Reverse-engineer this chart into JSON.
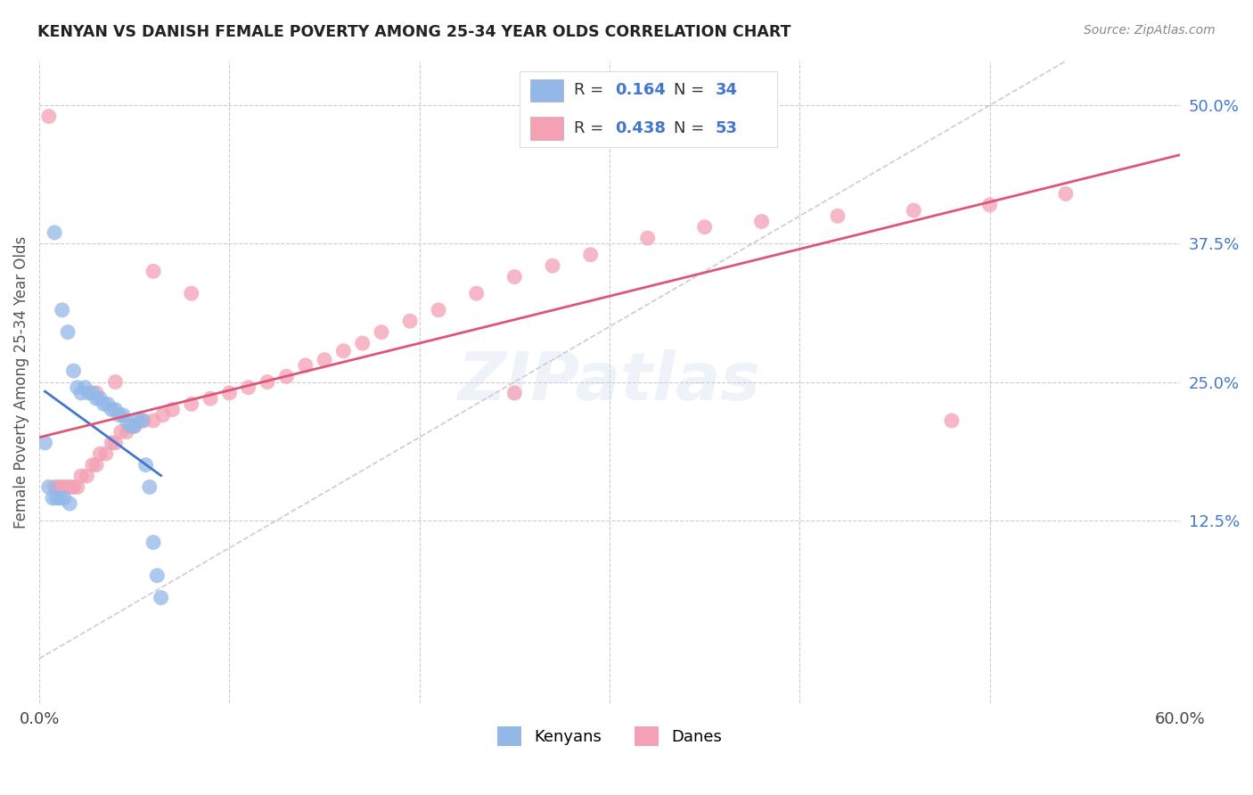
{
  "title": "KENYAN VS DANISH FEMALE POVERTY AMONG 25-34 YEAR OLDS CORRELATION CHART",
  "source": "Source: ZipAtlas.com",
  "ylabel": "Female Poverty Among 25-34 Year Olds",
  "xlim": [
    0.0,
    0.6
  ],
  "ylim": [
    -0.04,
    0.54
  ],
  "xticks": [
    0.0,
    0.1,
    0.2,
    0.3,
    0.4,
    0.5,
    0.6
  ],
  "xticklabels": [
    "0.0%",
    "",
    "",
    "",
    "",
    "",
    "60.0%"
  ],
  "yticks": [
    0.125,
    0.25,
    0.375,
    0.5
  ],
  "yticklabels": [
    "12.5%",
    "25.0%",
    "37.5%",
    "50.0%"
  ],
  "background_color": "#ffffff",
  "grid_color": "#cccccc",
  "kenyan_color": "#93b8e8",
  "dane_color": "#f4a0b5",
  "kenyan_trend_color": "#4477cc",
  "dane_trend_color": "#dd5577",
  "diagonal_color": "#aaaaaa",
  "watermark": "ZIPatlas",
  "legend_R_N_color": "#4477cc",
  "kenyan_x": [
    0.008,
    0.012,
    0.015,
    0.018,
    0.02,
    0.022,
    0.024,
    0.026,
    0.028,
    0.03,
    0.032,
    0.034,
    0.036,
    0.038,
    0.04,
    0.042,
    0.044,
    0.046,
    0.048,
    0.05,
    0.052,
    0.054,
    0.056,
    0.058,
    0.06,
    0.062,
    0.064,
    0.003,
    0.005,
    0.007,
    0.009,
    0.011,
    0.013,
    0.016
  ],
  "kenyan_y": [
    0.385,
    0.315,
    0.295,
    0.26,
    0.245,
    0.24,
    0.245,
    0.24,
    0.24,
    0.235,
    0.235,
    0.23,
    0.23,
    0.225,
    0.225,
    0.22,
    0.22,
    0.215,
    0.21,
    0.21,
    0.215,
    0.215,
    0.175,
    0.155,
    0.105,
    0.075,
    0.055,
    0.195,
    0.155,
    0.145,
    0.145,
    0.145,
    0.145,
    0.14
  ],
  "dane_x": [
    0.005,
    0.008,
    0.01,
    0.012,
    0.014,
    0.016,
    0.018,
    0.02,
    0.022,
    0.025,
    0.028,
    0.03,
    0.032,
    0.035,
    0.038,
    0.04,
    0.043,
    0.046,
    0.05,
    0.055,
    0.06,
    0.065,
    0.07,
    0.08,
    0.09,
    0.1,
    0.11,
    0.12,
    0.13,
    0.14,
    0.15,
    0.16,
    0.17,
    0.18,
    0.195,
    0.21,
    0.23,
    0.25,
    0.27,
    0.29,
    0.32,
    0.35,
    0.38,
    0.42,
    0.46,
    0.5,
    0.54,
    0.03,
    0.04,
    0.06,
    0.08,
    0.25,
    0.48
  ],
  "dane_y": [
    0.49,
    0.155,
    0.155,
    0.155,
    0.155,
    0.155,
    0.155,
    0.155,
    0.165,
    0.165,
    0.175,
    0.175,
    0.185,
    0.185,
    0.195,
    0.195,
    0.205,
    0.205,
    0.21,
    0.215,
    0.215,
    0.22,
    0.225,
    0.23,
    0.235,
    0.24,
    0.245,
    0.25,
    0.255,
    0.265,
    0.27,
    0.278,
    0.285,
    0.295,
    0.305,
    0.315,
    0.33,
    0.345,
    0.355,
    0.365,
    0.38,
    0.39,
    0.395,
    0.4,
    0.405,
    0.41,
    0.42,
    0.24,
    0.25,
    0.35,
    0.33,
    0.24,
    0.215
  ]
}
